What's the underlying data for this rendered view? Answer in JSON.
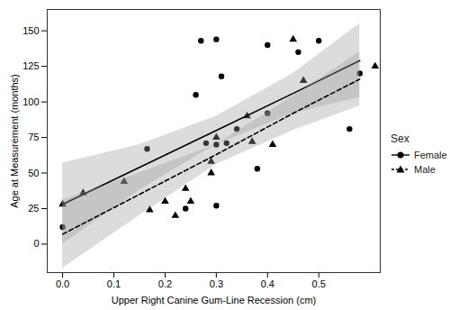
{
  "chart_data": {
    "type": "scatter",
    "x_label": "Upper Right Canine Gum-Line Recession (cm)",
    "y_label": "Age at Measurement (months)",
    "legend_title": "Sex",
    "legend": "right",
    "grid": false,
    "xlim": [
      -0.03,
      0.62
    ],
    "ylim": [
      -20,
      165
    ],
    "xticks": [
      {
        "value": 0,
        "label": "0.0"
      },
      {
        "value": 0.1,
        "label": "0.1"
      },
      {
        "value": 0.2,
        "label": "0.2"
      },
      {
        "value": 0.3,
        "label": "0.3"
      },
      {
        "value": 0.4,
        "label": "0.4"
      },
      {
        "value": 0.5,
        "label": "0.5"
      }
    ],
    "yticks": [
      0,
      25,
      50,
      75,
      100,
      125,
      150
    ],
    "series": [
      {
        "name": "Female",
        "marker": "circle",
        "line_style": "solid",
        "color": "#000000",
        "x": [
          0.0,
          0.165,
          0.24,
          0.26,
          0.27,
          0.28,
          0.3,
          0.3,
          0.3,
          0.31,
          0.32,
          0.34,
          0.38,
          0.4,
          0.4,
          0.46,
          0.5,
          0.56,
          0.58
        ],
        "values": [
          12,
          67,
          25,
          105,
          143,
          71,
          144,
          27,
          70,
          118,
          71,
          81,
          53,
          140,
          92,
          135,
          143,
          81,
          120
        ],
        "fit": {
          "x": [
            0,
            0.15,
            0.3,
            0.45,
            0.58
          ],
          "values": [
            28,
            54,
            80,
            106,
            129
          ],
          "lower": [
            0,
            38,
            70,
            92,
            103
          ],
          "upper": [
            57,
            70,
            90,
            120,
            155
          ]
        }
      },
      {
        "name": "Male",
        "marker": "triangle",
        "line_style": "dashed",
        "color": "#000000",
        "x": [
          0.0,
          0.04,
          0.12,
          0.17,
          0.2,
          0.22,
          0.24,
          0.25,
          0.29,
          0.29,
          0.3,
          0.36,
          0.37,
          0.41,
          0.45,
          0.47,
          0.61
        ],
        "values": [
          28,
          36,
          44,
          24,
          30,
          20,
          39,
          30,
          58,
          50,
          75,
          90,
          72,
          70,
          144,
          115,
          125
        ],
        "fit": {
          "x": [
            0,
            0.15,
            0.3,
            0.45,
            0.58
          ],
          "values": [
            7,
            35,
            63,
            92,
            116
          ],
          "lower": [
            -17,
            20,
            56,
            80,
            97
          ],
          "upper": [
            31,
            50,
            70,
            104,
            135
          ]
        }
      }
    ]
  }
}
